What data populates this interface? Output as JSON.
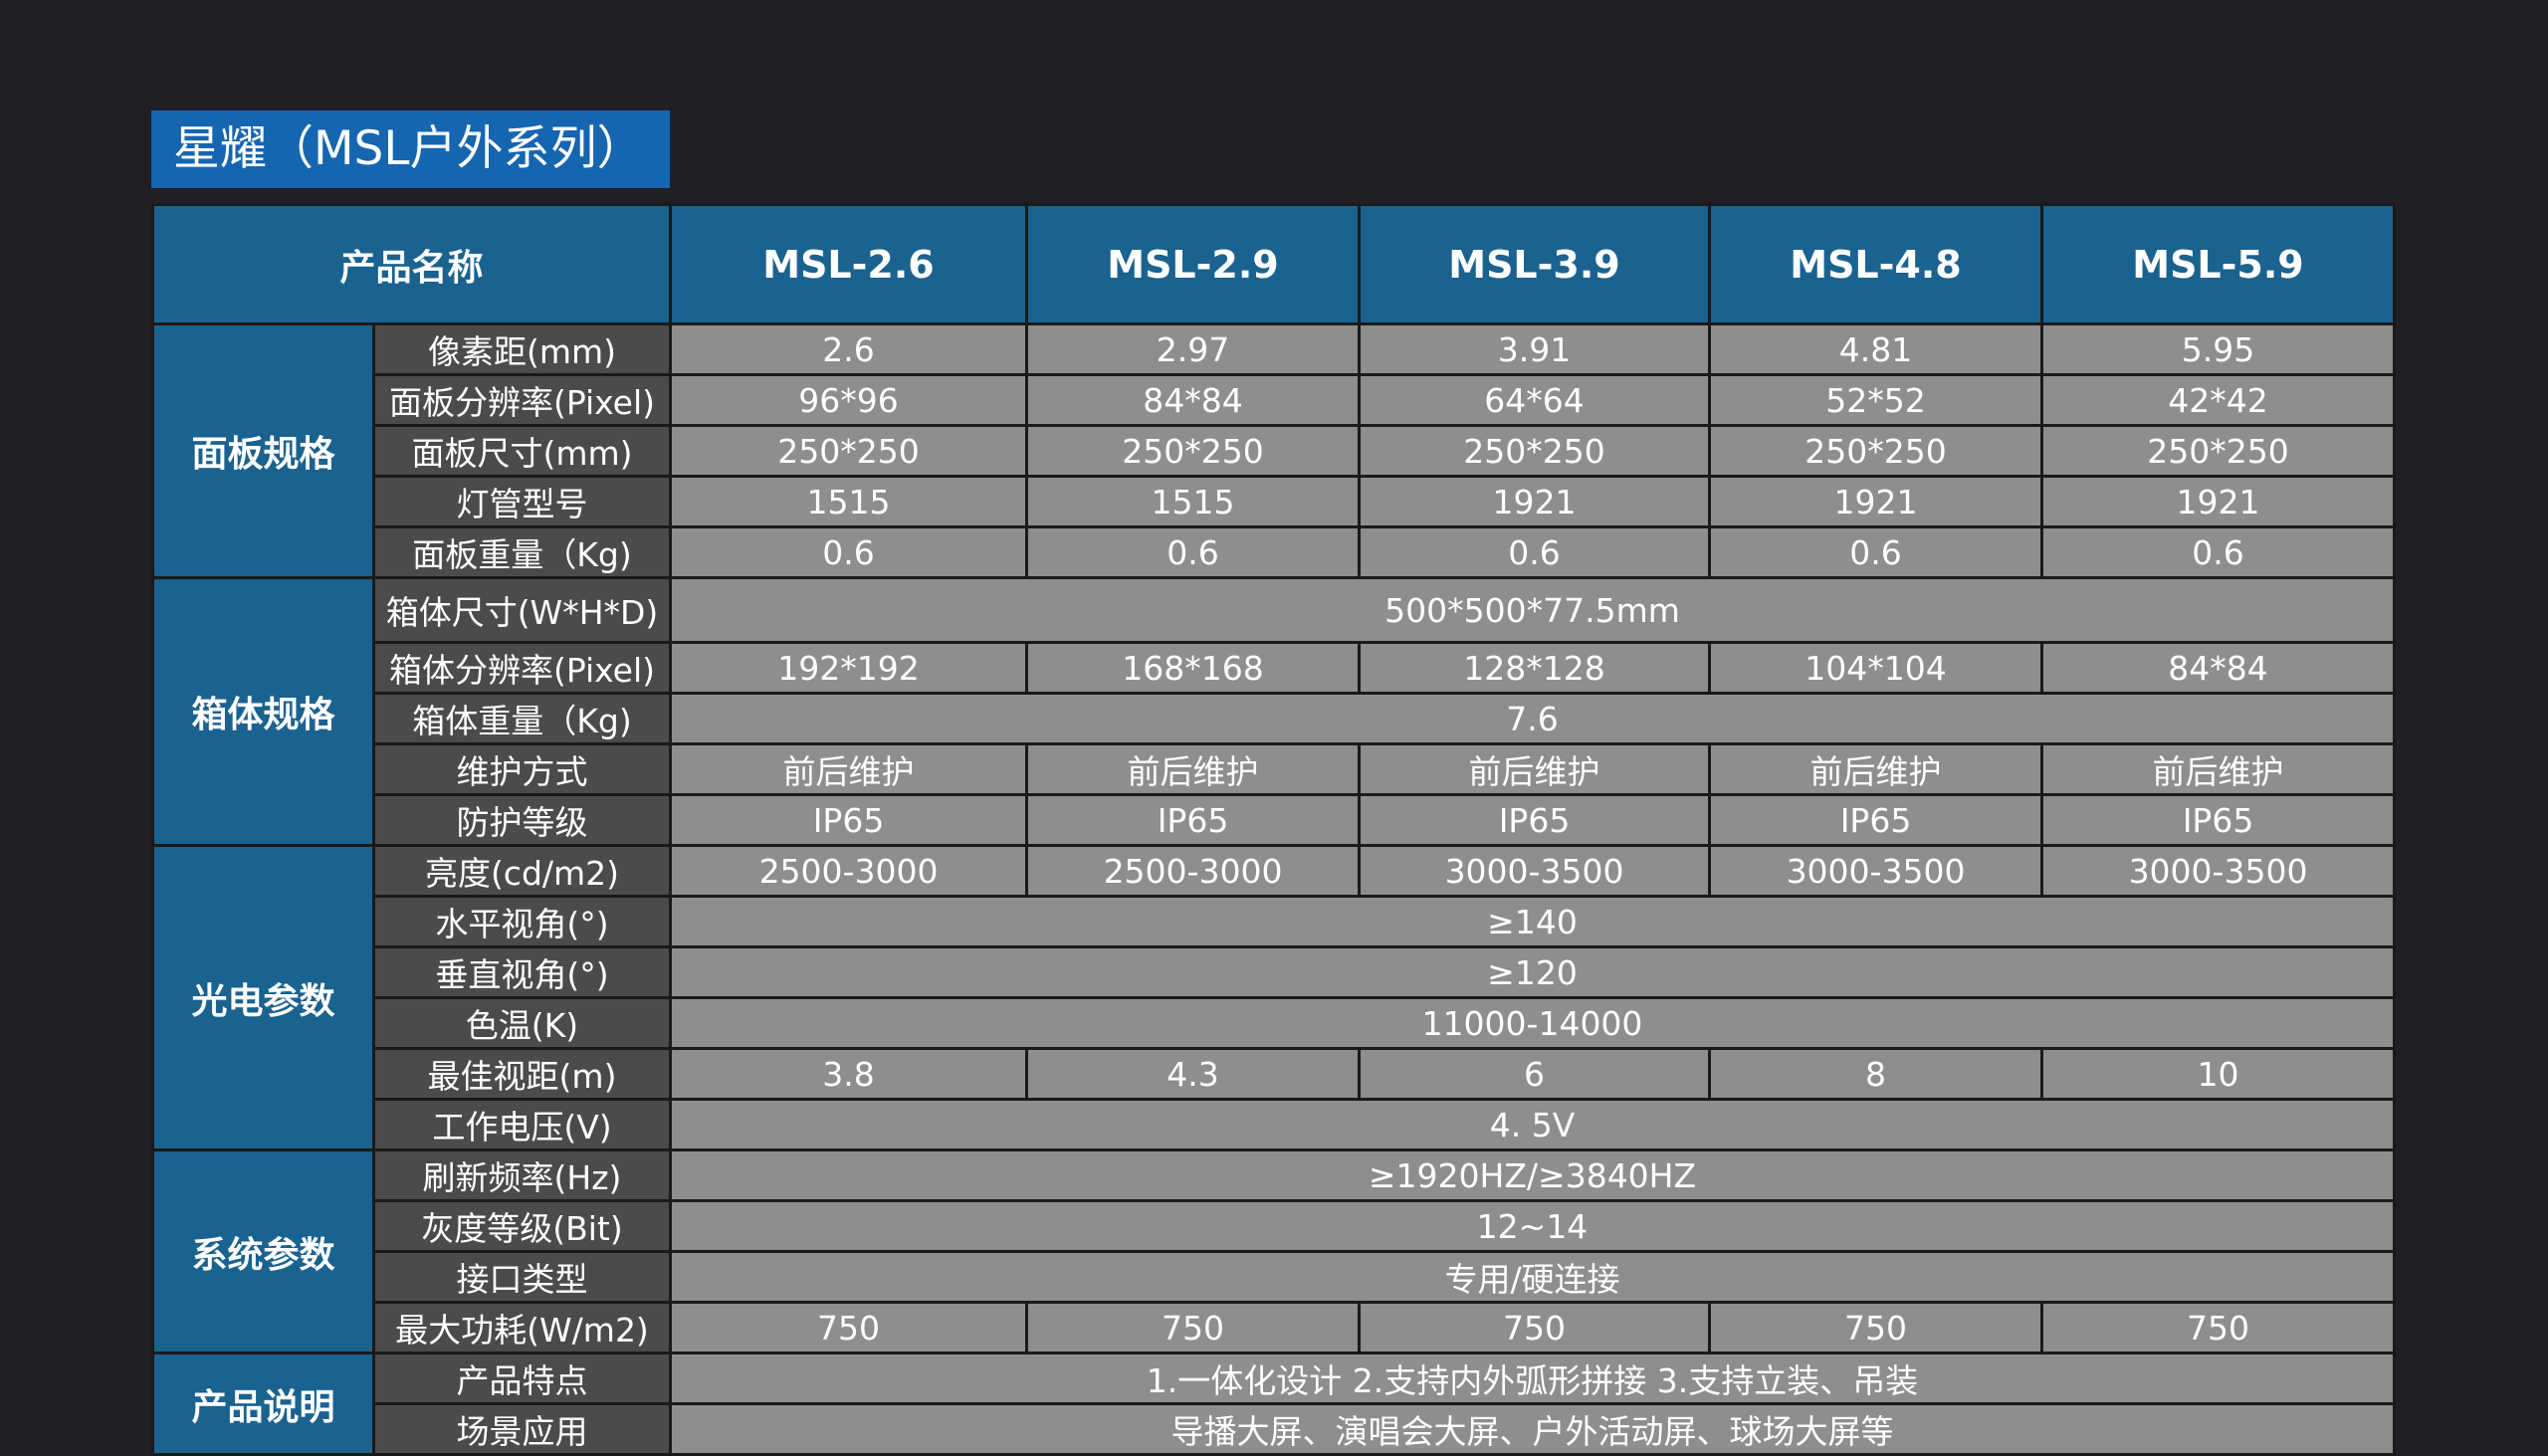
{
  "title": "星耀（MSL户外系列）",
  "table": {
    "header_label": "产品名称",
    "models": [
      "MSL-2.6",
      "MSL-2.9",
      "MSL-3.9",
      "MSL-4.8",
      "MSL-5.9"
    ],
    "groups": [
      {
        "name": "面板规格",
        "rows": [
          {
            "label": "像素距(mm)",
            "values": [
              "2.6",
              "2.97",
              "3.91",
              "4.81",
              "5.95"
            ]
          },
          {
            "label": "面板分辨率(Pixel)",
            "values": [
              "96*96",
              "84*84",
              "64*64",
              "52*52",
              "42*42"
            ]
          },
          {
            "label": "面板尺寸(mm)",
            "values": [
              "250*250",
              "250*250",
              "250*250",
              "250*250",
              "250*250"
            ]
          },
          {
            "label": "灯管型号",
            "values": [
              "1515",
              "1515",
              "1921",
              "1921",
              "1921"
            ]
          },
          {
            "label": "面板重量（Kg)",
            "values": [
              "0.6",
              "0.6",
              "0.6",
              "0.6",
              "0.6"
            ]
          }
        ]
      },
      {
        "name": "箱体规格",
        "rows": [
          {
            "label": "箱体尺寸(W*H*D)",
            "merged": "500*500*77.5mm"
          },
          {
            "label": "箱体分辨率(Pixel)",
            "values": [
              "192*192",
              "168*168",
              "128*128",
              "104*104",
              "84*84"
            ]
          },
          {
            "label": "箱体重量（Kg)",
            "merged": "7.6"
          },
          {
            "label": "维护方式",
            "values": [
              "前后维护",
              "前后维护",
              "前后维护",
              "前后维护",
              "前后维护"
            ]
          },
          {
            "label": "防护等级",
            "values": [
              "IP65",
              "IP65",
              "IP65",
              "IP65",
              "IP65"
            ]
          }
        ]
      },
      {
        "name": "光电参数",
        "rows": [
          {
            "label": "亮度(cd/m2)",
            "values": [
              "2500-3000",
              "2500-3000",
              "3000-3500",
              "3000-3500",
              "3000-3500"
            ]
          },
          {
            "label": "水平视角(°)",
            "merged": "≥140"
          },
          {
            "label": "垂直视角(°)",
            "merged": "≥120"
          },
          {
            "label": "色温(K)",
            "merged": "11000-14000"
          },
          {
            "label": "最佳视距(m)",
            "values": [
              "3.8",
              "4.3",
              "6",
              "8",
              "10"
            ]
          },
          {
            "label": "工作电压(V)",
            "merged": "4. 5V"
          }
        ]
      },
      {
        "name": "系统参数",
        "rows": [
          {
            "label": "刷新频率(Hz)",
            "merged": "≥1920HZ/≥3840HZ"
          },
          {
            "label": "灰度等级(Bit)",
            "merged": "12~14"
          },
          {
            "label": "接口类型",
            "merged": "专用/硬连接"
          },
          {
            "label": "最大功耗(W/m2)",
            "values": [
              "750",
              "750",
              "750",
              "750",
              "750"
            ]
          }
        ]
      },
      {
        "name": "产品说明",
        "rows": [
          {
            "label": "产品特点",
            "merged": "1.一体化设计 2.支持内外弧形拼接 3.支持立装、吊装"
          },
          {
            "label": "场景应用",
            "merged": "导播大屏、演唱会大屏、户外活动屏、球场大屏等"
          }
        ]
      }
    ]
  }
}
